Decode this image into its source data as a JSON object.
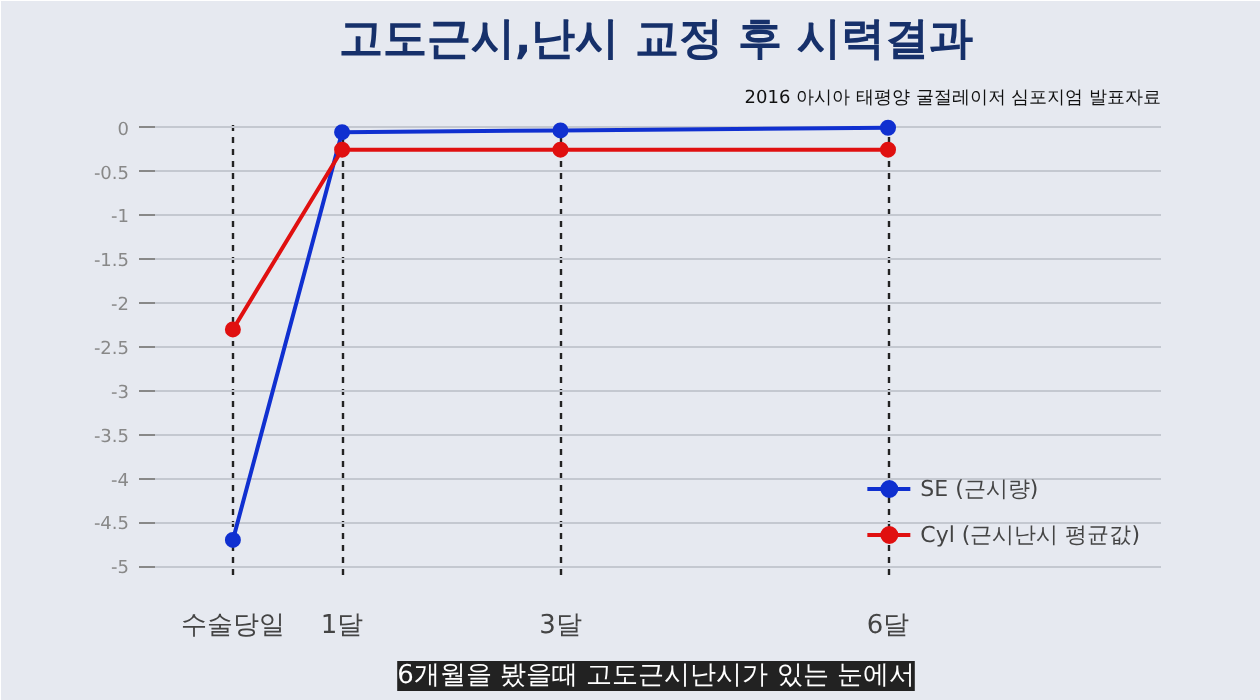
{
  "chart_data": {
    "type": "line",
    "title": "고도근시,난시 교정 후 시력결과",
    "annotations": [
      "2016 아시아 태평양 굴절레이저 심포지엄 발표자료",
      "6개월을 봤을때 고도근시난시가 있는 눈에서"
    ],
    "x": [
      0,
      1,
      3,
      6
    ],
    "xlim": [
      -0.75,
      8.5
    ],
    "xticks": [
      {
        "value": 0,
        "label": "수술당일"
      },
      {
        "value": 1,
        "label": "1달"
      },
      {
        "value": 3,
        "label": "3달"
      },
      {
        "value": 6,
        "label": "6달"
      }
    ],
    "ylim": [
      -5.1,
      0.1
    ],
    "yticks": [
      {
        "value": 0,
        "label": "0"
      },
      {
        "value": -0.5,
        "label": "-0.5"
      },
      {
        "value": -1,
        "label": "-1"
      },
      {
        "value": -1.5,
        "label": "-1.5"
      },
      {
        "value": -2,
        "label": "-2"
      },
      {
        "value": -2.5,
        "label": "-2.5"
      },
      {
        "value": -3,
        "label": "-3"
      },
      {
        "value": -3.5,
        "label": "-3.5"
      },
      {
        "value": -4,
        "label": "-4"
      },
      {
        "value": -4.5,
        "label": "-4.5"
      },
      {
        "value": -5,
        "label": "-5"
      }
    ],
    "series": [
      {
        "name": "SE (근시량)",
        "color": "#1030d0",
        "values": [
          -4.7,
          -0.05,
          -0.03,
          0
        ]
      },
      {
        "name": "Cyl (근시난시 평균값)",
        "color": "#e01010",
        "values": [
          -2.3,
          -0.25,
          -0.25,
          -0.25
        ]
      }
    ],
    "grid": true,
    "legend": "bottom right",
    "marker": "circle",
    "line_style": "solid"
  }
}
